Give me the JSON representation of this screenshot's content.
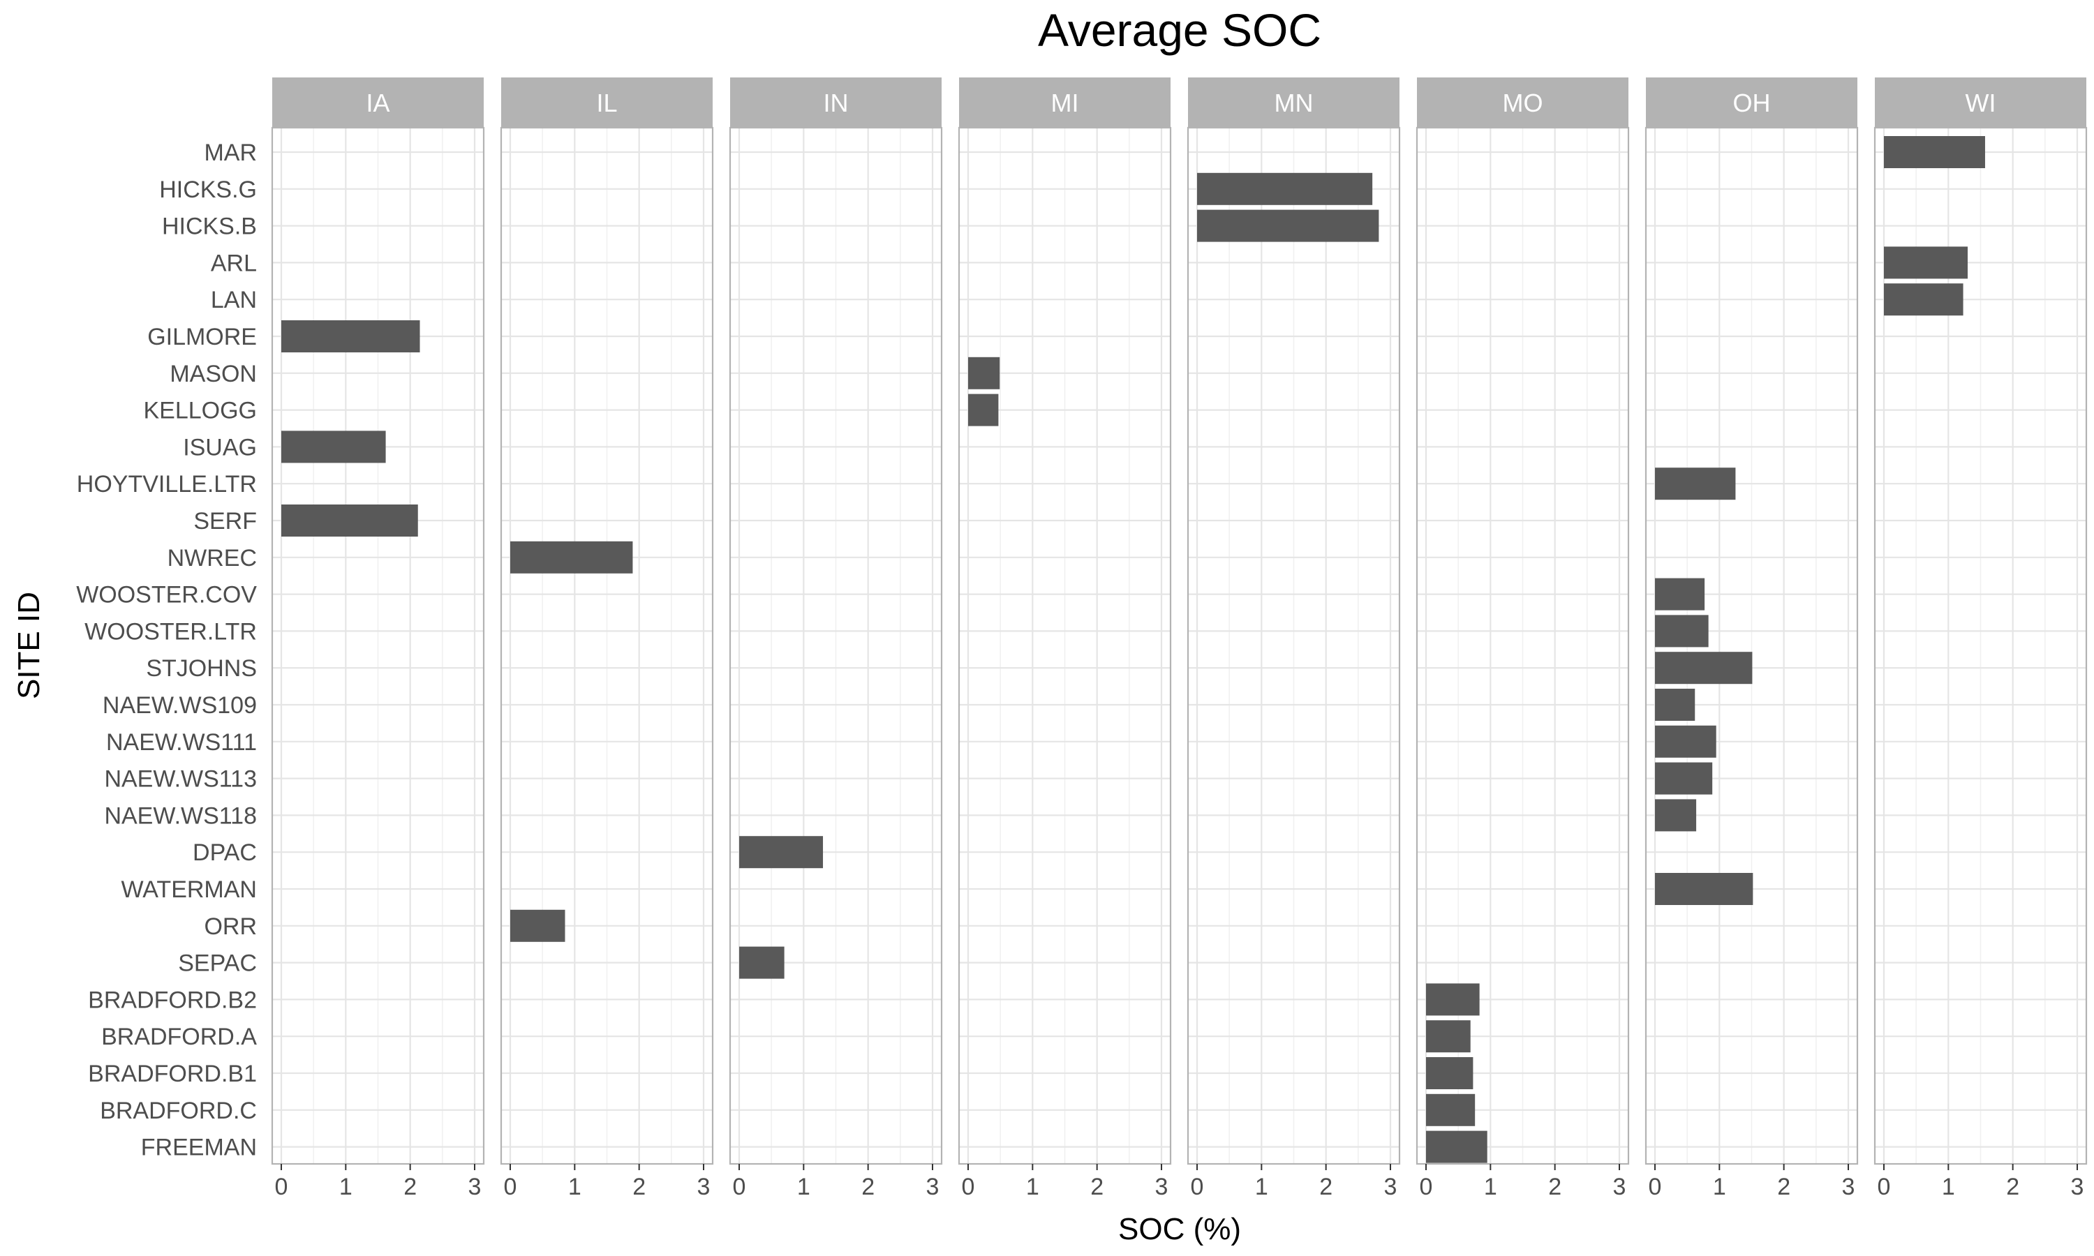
{
  "chart_data": {
    "type": "bar",
    "orientation": "horizontal",
    "faceted_by": "state",
    "title": "Average SOC",
    "xlabel": "SOC (%)",
    "ylabel": "SITE ID",
    "xlim": [
      0,
      3
    ],
    "x_ticks": [
      "0",
      "1",
      "2",
      "3"
    ],
    "grid": true,
    "bar_color": "#595959",
    "strip_color": "#b3b3b3",
    "panel_border_color": "#b3b3b3",
    "grid_color": "#e5e5e5",
    "categories": [
      "MAR",
      "HICKS.G",
      "HICKS.B",
      "ARL",
      "LAN",
      "GILMORE",
      "MASON",
      "KELLOGG",
      "ISUAG",
      "HOYTVILLE.LTR",
      "SERF",
      "NWREC",
      "WOOSTER.COV",
      "WOOSTER.LTR",
      "STJOHNS",
      "NAEW.WS109",
      "NAEW.WS111",
      "NAEW.WS113",
      "NAEW.WS118",
      "DPAC",
      "WATERMAN",
      "ORR",
      "SEPAC",
      "BRADFORD.B2",
      "BRADFORD.A",
      "BRADFORD.B1",
      "BRADFORD.C",
      "FREEMAN"
    ],
    "panels": [
      {
        "name": "IA",
        "bars": [
          {
            "site": "GILMORE",
            "value": 2.15
          },
          {
            "site": "ISUAG",
            "value": 1.62
          },
          {
            "site": "SERF",
            "value": 2.12
          }
        ]
      },
      {
        "name": "IL",
        "bars": [
          {
            "site": "NWREC",
            "value": 1.9
          },
          {
            "site": "ORR",
            "value": 0.85
          }
        ]
      },
      {
        "name": "IN",
        "bars": [
          {
            "site": "DPAC",
            "value": 1.3
          },
          {
            "site": "SEPAC",
            "value": 0.7
          }
        ]
      },
      {
        "name": "MI",
        "bars": [
          {
            "site": "MASON",
            "value": 0.49
          },
          {
            "site": "KELLOGG",
            "value": 0.47
          }
        ]
      },
      {
        "name": "MN",
        "bars": [
          {
            "site": "HICKS.G",
            "value": 2.72
          },
          {
            "site": "HICKS.B",
            "value": 2.82
          }
        ]
      },
      {
        "name": "MO",
        "bars": [
          {
            "site": "BRADFORD.B2",
            "value": 0.83
          },
          {
            "site": "BRADFORD.A",
            "value": 0.69
          },
          {
            "site": "BRADFORD.B1",
            "value": 0.73
          },
          {
            "site": "BRADFORD.C",
            "value": 0.76
          },
          {
            "site": "FREEMAN",
            "value": 0.95
          }
        ]
      },
      {
        "name": "OH",
        "bars": [
          {
            "site": "HOYTVILLE.LTR",
            "value": 1.25
          },
          {
            "site": "WOOSTER.COV",
            "value": 0.77
          },
          {
            "site": "WOOSTER.LTR",
            "value": 0.83
          },
          {
            "site": "STJOHNS",
            "value": 1.51
          },
          {
            "site": "NAEW.WS109",
            "value": 0.62
          },
          {
            "site": "NAEW.WS111",
            "value": 0.95
          },
          {
            "site": "NAEW.WS113",
            "value": 0.89
          },
          {
            "site": "NAEW.WS118",
            "value": 0.64
          },
          {
            "site": "WATERMAN",
            "value": 1.52
          }
        ]
      },
      {
        "name": "WI",
        "bars": [
          {
            "site": "MAR",
            "value": 1.57
          },
          {
            "site": "ARL",
            "value": 1.3
          },
          {
            "site": "LAN",
            "value": 1.23
          }
        ]
      }
    ]
  }
}
